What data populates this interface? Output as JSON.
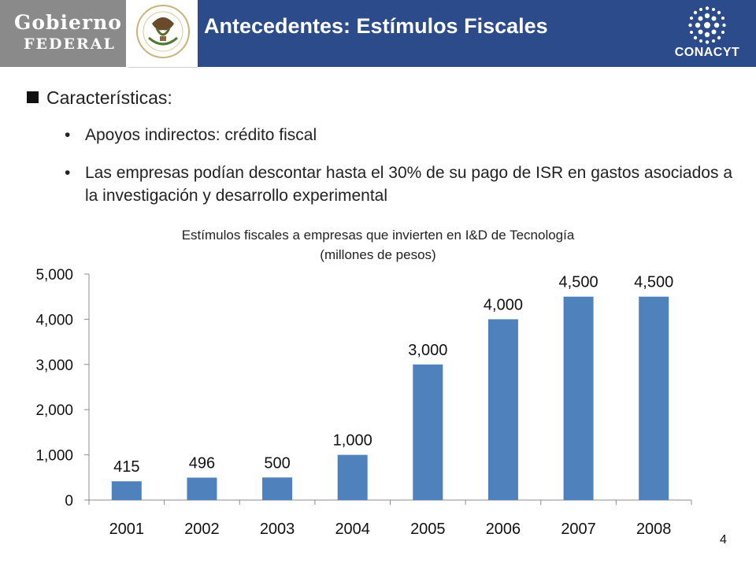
{
  "header": {
    "logo_line1": "Gobierno",
    "logo_line2": "FEDERAL",
    "seal_caption": "ESTADOS UNIDOS MEXICANOS",
    "title": "Antecedentes: Estímulos Fiscales",
    "conacyt_label": "CONACYT"
  },
  "colors": {
    "header_bar": "#2c4b8a",
    "logo_gray": "#8a8a8a",
    "bar": "#4f81bd"
  },
  "content": {
    "bullet": "Características:",
    "sub_bullets": [
      "Apoyos indirectos: crédito fiscal",
      "Las empresas podían descontar hasta el 30% de su pago de ISR en gastos asociados a la investigación y desarrollo experimental"
    ]
  },
  "chart_data": {
    "type": "bar",
    "title": "Estímulos fiscales a empresas que invierten en I&D de Tecnología",
    "subtitle": "(millones de pesos)",
    "categories": [
      "2001",
      "2002",
      "2003",
      "2004",
      "2005",
      "2006",
      "2007",
      "2008"
    ],
    "values": [
      415,
      496,
      500,
      1000,
      3000,
      4000,
      4500,
      4500
    ],
    "data_labels": [
      "415",
      "496",
      "500",
      "1,000",
      "3,000",
      "4,000",
      "4,500",
      "4,500"
    ],
    "yticks": [
      "0",
      "1,000",
      "2,000",
      "3,000",
      "4,000",
      "5,000"
    ],
    "ylim": [
      0,
      5000
    ],
    "grid": false,
    "legend": "none"
  },
  "page_number": "4"
}
